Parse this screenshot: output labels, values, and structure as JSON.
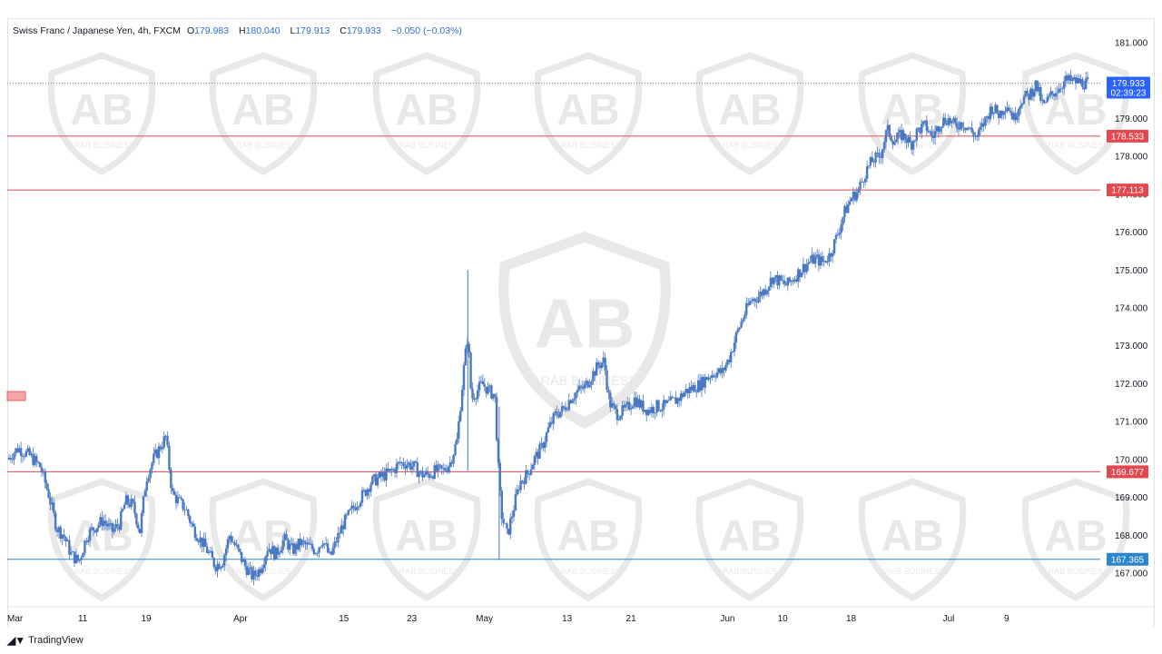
{
  "header": {
    "symbol": "Swiss Franc / Japanese Yen, 4h, FXCM",
    "open_label": "O",
    "open": "179.983",
    "high_label": "H",
    "high": "180.040",
    "low_label": "L",
    "low": "179.913",
    "close_label": "C",
    "close": "179.933",
    "change": "−0.050 (−0.03%)"
  },
  "footer": {
    "logo_icon": "tradingview-logo-icon",
    "brand": "TradingView"
  },
  "watermark": {
    "text": "ARAB BUSINESS",
    "icon": "arab-business-shield-icon"
  },
  "colors": {
    "candle": "#4a78c2",
    "level_red": "#e5474f",
    "level_blue": "#2a86c9",
    "price_tag": "#2962ff",
    "grid": "#eef0f4"
  },
  "chart_data": {
    "type": "candlestick",
    "symbol": "CHFJPY",
    "timeframe": "4h",
    "ylim": [
      166.6,
      181.3
    ],
    "y_ticks": [
      "181.000",
      "180.000",
      "179.000",
      "178.000",
      "177.000",
      "176.000",
      "175.000",
      "174.000",
      "173.000",
      "172.000",
      "171.000",
      "170.000",
      "169.000",
      "168.000",
      "167.000"
    ],
    "x_ticks": [
      "Mar",
      "11",
      "19",
      "Apr",
      "15",
      "23",
      "May",
      "13",
      "21",
      "Jun",
      "10",
      "18",
      "Jul",
      "9"
    ],
    "x_tick_pos": [
      0.0,
      0.0689,
      0.1273,
      0.2127,
      0.3103,
      0.3732,
      0.4371,
      0.5169,
      0.5761,
      0.6633,
      0.7165,
      0.7798,
      0.8694,
      0.926
    ],
    "levels": [
      {
        "value": 178.533,
        "label": "178.533",
        "color": "#e5474f"
      },
      {
        "value": 177.113,
        "label": "177.113",
        "color": "#e5474f"
      },
      {
        "value": 169.677,
        "label": "169.677",
        "color": "#e5474f"
      },
      {
        "value": 167.365,
        "label": "167.365",
        "color": "#2a86c9"
      }
    ],
    "last_price": {
      "value": 179.933,
      "label": "179.933",
      "countdown": "02:39:23"
    },
    "price_path": [
      [
        0.0,
        170.0
      ],
      [
        0.012,
        170.3
      ],
      [
        0.025,
        170.1
      ],
      [
        0.037,
        169.8
      ],
      [
        0.046,
        169.1
      ],
      [
        0.055,
        168.2
      ],
      [
        0.063,
        168.0
      ],
      [
        0.071,
        167.5
      ],
      [
        0.08,
        167.3
      ],
      [
        0.089,
        168.0
      ],
      [
        0.097,
        168.2
      ],
      [
        0.107,
        168.4
      ],
      [
        0.117,
        168.1
      ],
      [
        0.125,
        168.3
      ],
      [
        0.132,
        168.9
      ],
      [
        0.14,
        168.8
      ],
      [
        0.148,
        168.1
      ],
      [
        0.155,
        169.5
      ],
      [
        0.163,
        170.0
      ],
      [
        0.17,
        170.3
      ],
      [
        0.177,
        170.6
      ],
      [
        0.184,
        169.1
      ],
      [
        0.191,
        168.9
      ],
      [
        0.199,
        168.7
      ],
      [
        0.207,
        168.2
      ],
      [
        0.215,
        167.9
      ],
      [
        0.223,
        167.6
      ],
      [
        0.232,
        167.2
      ],
      [
        0.24,
        167.3
      ],
      [
        0.248,
        168.0
      ],
      [
        0.257,
        167.6
      ],
      [
        0.265,
        167.2
      ],
      [
        0.274,
        166.9
      ],
      [
        0.282,
        167.1
      ],
      [
        0.291,
        167.7
      ],
      [
        0.3,
        167.5
      ],
      [
        0.309,
        167.9
      ],
      [
        0.318,
        167.6
      ],
      [
        0.327,
        167.8
      ],
      [
        0.336,
        167.7
      ],
      [
        0.345,
        167.6
      ],
      [
        0.352,
        167.9
      ],
      [
        0.36,
        167.4
      ],
      [
        0.368,
        167.9
      ],
      [
        0.375,
        168.3
      ],
      [
        0.383,
        168.6
      ],
      [
        0.391,
        168.9
      ],
      [
        0.398,
        169.1
      ],
      [
        0.406,
        169.4
      ],
      [
        0.414,
        169.5
      ],
      [
        0.422,
        169.6
      ],
      [
        0.43,
        169.7
      ],
      [
        0.438,
        169.9
      ],
      [
        0.446,
        169.9
      ],
      [
        0.454,
        169.8
      ],
      [
        0.462,
        169.6
      ],
      [
        0.47,
        169.6
      ],
      [
        0.478,
        169.7
      ],
      [
        0.486,
        169.7
      ],
      [
        0.494,
        169.9
      ],
      [
        0.502,
        170.5
      ],
      [
        0.51,
        172.5
      ],
      [
        0.514,
        173.3
      ],
      [
        0.518,
        171.6
      ],
      [
        0.524,
        171.8
      ],
      [
        0.53,
        172.0
      ],
      [
        0.538,
        171.8
      ],
      [
        0.544,
        171.7
      ],
      [
        0.549,
        169.3
      ],
      [
        0.552,
        168.5
      ],
      [
        0.558,
        168.0
      ],
      [
        0.565,
        168.7
      ],
      [
        0.572,
        169.4
      ],
      [
        0.58,
        169.6
      ],
      [
        0.588,
        170.0
      ],
      [
        0.596,
        170.3
      ],
      [
        0.604,
        170.8
      ],
      [
        0.612,
        171.2
      ],
      [
        0.62,
        171.3
      ],
      [
        0.628,
        171.6
      ],
      [
        0.636,
        171.8
      ],
      [
        0.644,
        171.9
      ],
      [
        0.652,
        172.2
      ],
      [
        0.66,
        172.5
      ],
      [
        0.666,
        172.6
      ],
      [
        0.672,
        171.5
      ],
      [
        0.68,
        171.2
      ],
      [
        0.69,
        171.3
      ],
      [
        0.7,
        171.6
      ],
      [
        0.708,
        171.4
      ],
      [
        0.716,
        171.3
      ],
      [
        0.725,
        171.4
      ],
      [
        0.733,
        171.4
      ],
      [
        0.741,
        171.5
      ],
      [
        0.749,
        171.6
      ],
      [
        0.757,
        171.8
      ],
      [
        0.766,
        171.9
      ],
      [
        0.774,
        172.0
      ],
      [
        0.782,
        172.2
      ],
      [
        0.79,
        172.3
      ],
      [
        0.798,
        172.3
      ],
      [
        0.806,
        172.7
      ],
      [
        0.814,
        173.3
      ],
      [
        0.822,
        173.8
      ],
      [
        0.83,
        174.2
      ],
      [
        0.838,
        174.3
      ],
      [
        0.846,
        174.5
      ],
      [
        0.854,
        174.8
      ],
      [
        0.862,
        174.7
      ],
      [
        0.87,
        174.6
      ],
      [
        0.878,
        174.8
      ],
      [
        0.886,
        175.0
      ],
      [
        0.894,
        175.2
      ],
      [
        0.902,
        175.3
      ],
      [
        0.91,
        175.2
      ],
      [
        0.918,
        175.4
      ],
      [
        0.926,
        175.9
      ],
      [
        0.934,
        176.5
      ],
      [
        0.942,
        176.9
      ],
      [
        0.95,
        177.1
      ],
      [
        0.958,
        177.6
      ],
      [
        0.966,
        177.9
      ],
      [
        0.974,
        178.0
      ],
      [
        0.982,
        178.7
      ],
      [
        0.99,
        178.4
      ],
      [
        1.0,
        178.6
      ]
    ],
    "price_path_2": [
      [
        0.0,
        178.6
      ],
      [
        0.04,
        178.3
      ],
      [
        0.08,
        178.7
      ],
      [
        0.12,
        178.8
      ],
      [
        0.16,
        178.5
      ],
      [
        0.2,
        178.9
      ],
      [
        0.24,
        179.0
      ],
      [
        0.28,
        178.8
      ],
      [
        0.32,
        178.9
      ],
      [
        0.36,
        178.7
      ],
      [
        0.4,
        178.5
      ],
      [
        0.44,
        178.9
      ],
      [
        0.48,
        179.3
      ],
      [
        0.52,
        179.1
      ],
      [
        0.56,
        179.4
      ],
      [
        0.6,
        179.0
      ],
      [
        0.64,
        179.5
      ],
      [
        0.68,
        179.6
      ],
      [
        0.72,
        179.9
      ],
      [
        0.76,
        179.3
      ],
      [
        0.8,
        179.6
      ],
      [
        0.84,
        179.8
      ],
      [
        0.88,
        180.0
      ],
      [
        1.0,
        179.93
      ]
    ],
    "wicks": [
      {
        "x": 0.514,
        "high": 175.0,
        "low": 169.7
      },
      {
        "x": 0.549,
        "high": 171.4,
        "low": 167.35
      }
    ]
  }
}
